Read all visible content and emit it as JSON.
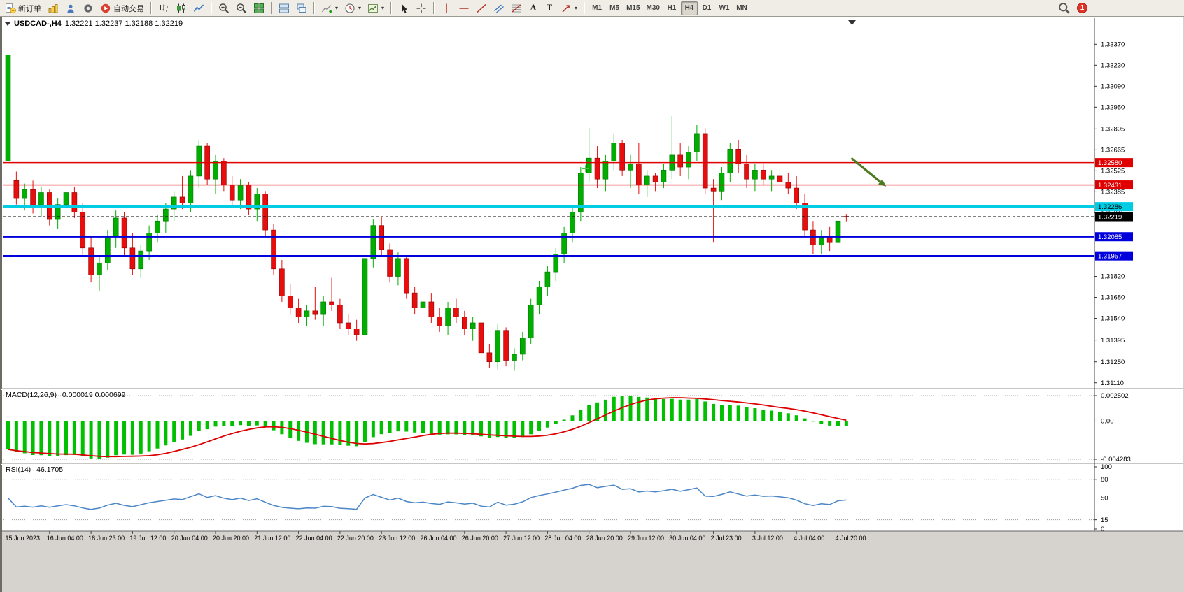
{
  "toolbar": {
    "new_order_label": "新订单",
    "autotrade_label": "自动交易",
    "timeframes": [
      "M1",
      "M5",
      "M15",
      "M30",
      "H1",
      "H4",
      "D1",
      "W1",
      "MN"
    ],
    "active_timeframe": "H4",
    "notification_count": "1",
    "text_tool_glyph": "A",
    "label_tool_glyph": "T",
    "items": [
      {
        "icon": "new-order",
        "label_key": "new_order_label"
      },
      {
        "icon": "charts"
      },
      {
        "icon": "market-watch"
      },
      {
        "icon": "data-window"
      },
      {
        "icon": "autotrade",
        "label_key": "autotrade_label"
      },
      {
        "sep": true
      },
      {
        "icon": "bar-chart"
      },
      {
        "icon": "candle-chart"
      },
      {
        "icon": "line-chart"
      },
      {
        "sep": true
      },
      {
        "icon": "zoom-in"
      },
      {
        "icon": "zoom-out"
      },
      {
        "icon": "tile-windows"
      },
      {
        "sep": true
      },
      {
        "icon": "auto-arrange"
      },
      {
        "icon": "cascade"
      },
      {
        "sep": true
      },
      {
        "icon": "indicators",
        "dropdown": true
      },
      {
        "icon": "periods",
        "dropdown": true
      },
      {
        "icon": "templates",
        "dropdown": true
      },
      {
        "sep": true
      },
      {
        "icon": "cursor"
      },
      {
        "icon": "crosshair"
      },
      {
        "sep": true
      },
      {
        "icon": "vline"
      },
      {
        "icon": "hline"
      },
      {
        "icon": "trendline"
      },
      {
        "icon": "channel"
      },
      {
        "icon": "fibonacci"
      },
      {
        "icon": "text-tool",
        "glyph": "A"
      },
      {
        "icon": "label-tool",
        "glyph": "T"
      },
      {
        "icon": "arrows",
        "dropdown": true
      },
      {
        "sep": true
      },
      {
        "tf": "M1"
      },
      {
        "tf": "M5"
      },
      {
        "tf": "M15"
      },
      {
        "tf": "M30"
      },
      {
        "tf": "H1"
      },
      {
        "tf": "H4"
      },
      {
        "tf": "D1"
      },
      {
        "tf": "W1"
      },
      {
        "tf": "MN"
      }
    ]
  },
  "chart": {
    "symbol_label": "USDCAD-,H4",
    "ohlc": "1.32221 1.32237 1.32188 1.32219",
    "current_price": "1.32219",
    "price_axis_ticks": [
      "1.33370",
      "1.33230",
      "1.33090",
      "1.32950",
      "1.32805",
      "1.32665",
      "1.32525",
      "1.32385",
      "1.32245",
      "1.31820",
      "1.31680",
      "1.31540",
      "1.31395",
      "1.31250",
      "1.31110"
    ],
    "price_lines": [
      {
        "label": "1.32580",
        "price": 1.3258,
        "color": "#E00000",
        "text_color": "#FFFFFF",
        "width": 1.4,
        "dashed": false
      },
      {
        "label": "1.32431",
        "price": 1.32431,
        "color": "#E00000",
        "text_color": "#FFFFFF",
        "width": 1.4,
        "dashed": false
      },
      {
        "label": "1.32286",
        "price": 1.32286,
        "color": "#00CCE4",
        "text_color": "#000000",
        "width": 3.2,
        "dashed": false
      },
      {
        "label": "1.32219",
        "price": 1.32219,
        "color": "#000000",
        "text_color": "#FFFFFF",
        "width": 1,
        "dashed": true
      },
      {
        "label": "1.32085",
        "price": 1.32085,
        "color": "#0000DC",
        "text_color": "#FFFFFF",
        "width": 2.4,
        "dashed": false
      },
      {
        "label": "1.31957",
        "price": 1.31957,
        "color": "#0000DC",
        "text_color": "#FFFFFF",
        "width": 2.4,
        "dashed": false
      }
    ],
    "time_axis": [
      "15 Jun 2023",
      "16 Jun 04:00",
      "18 Jun 23:00",
      "19 Jun 12:00",
      "20 Jun 04:00",
      "20 Jun 20:00",
      "21 Jun 12:00",
      "22 Jun 04:00",
      "22 Jun 20:00",
      "23 Jun 12:00",
      "26 Jun 04:00",
      "26 Jun 20:00",
      "27 Jun 12:00",
      "28 Jun 04:00",
      "28 Jun 20:00",
      "29 Jun 12:00",
      "30 Jun 04:00",
      "2 Jul 23:00",
      "3 Jul 12:00",
      "4 Jul 04:00",
      "4 Jul 20:00"
    ]
  },
  "macd": {
    "label": "MACD(12,26,9)",
    "values": "0.000019 0.000699",
    "axis": [
      "0.002502",
      "0.00",
      "-0.004283"
    ]
  },
  "rsi": {
    "label": "RSI(14)",
    "value": "46.1705",
    "axis": [
      "100",
      "80",
      "50",
      "15",
      "0"
    ],
    "axis_values": [
      100,
      80,
      50,
      15,
      0
    ],
    "levels": [
      80,
      50,
      15
    ]
  },
  "colors": {
    "candle_up": "#00AE00",
    "candle_up_border": "#007400",
    "candle_down": "#E80E0E",
    "candle_down_border": "#8E0000",
    "macd_histogram": "#00C000",
    "macd_signal": "#DC0000",
    "rsi_line": "#4A86C8",
    "arrow_annotation": "#4C7A1E",
    "plus_marker": "#46C846",
    "axis_text": "#000000"
  },
  "chart_data": {
    "type": "candlestick",
    "symbol": "USDCAD",
    "timeframe": "H4",
    "bars_per_time_label": 5,
    "candles_ohlc": [
      [
        1.3259,
        1.3334,
        1.3256,
        1.333
      ],
      [
        1.3246,
        1.3252,
        1.323,
        1.3234
      ],
      [
        1.3234,
        1.3244,
        1.3226,
        1.324
      ],
      [
        1.324,
        1.3246,
        1.3224,
        1.3228
      ],
      [
        1.3228,
        1.3242,
        1.3222,
        1.3238
      ],
      [
        1.3238,
        1.324,
        1.3216,
        1.322
      ],
      [
        1.322,
        1.3234,
        1.3214,
        1.323
      ],
      [
        1.323,
        1.3241,
        1.3222,
        1.3238
      ],
      [
        1.3238,
        1.3242,
        1.3221,
        1.3225
      ],
      [
        1.3225,
        1.3231,
        1.3196,
        1.3201
      ],
      [
        1.3201,
        1.3209,
        1.3178,
        1.3183
      ],
      [
        1.3183,
        1.3196,
        1.3172,
        1.3191
      ],
      [
        1.3191,
        1.3213,
        1.3186,
        1.3209
      ],
      [
        1.3209,
        1.3226,
        1.3201,
        1.3221
      ],
      [
        1.3221,
        1.3225,
        1.3196,
        1.3201
      ],
      [
        1.3201,
        1.3211,
        1.3183,
        1.3187
      ],
      [
        1.3187,
        1.3203,
        1.3181,
        1.3199
      ],
      [
        1.3199,
        1.3216,
        1.3193,
        1.3211
      ],
      [
        1.3211,
        1.3223,
        1.3205,
        1.3219
      ],
      [
        1.3219,
        1.3231,
        1.3211,
        1.3227
      ],
      [
        1.3227,
        1.3239,
        1.3219,
        1.3235
      ],
      [
        1.3235,
        1.3249,
        1.3227,
        1.3231
      ],
      [
        1.3231,
        1.3253,
        1.3225,
        1.3249
      ],
      [
        1.3249,
        1.3273,
        1.3241,
        1.3269
      ],
      [
        1.3269,
        1.3271,
        1.3243,
        1.3247
      ],
      [
        1.3247,
        1.3263,
        1.3237,
        1.3259
      ],
      [
        1.3259,
        1.3261,
        1.3239,
        1.3243
      ],
      [
        1.3243,
        1.3249,
        1.3229,
        1.3233
      ],
      [
        1.3233,
        1.3247,
        1.3227,
        1.3243
      ],
      [
        1.3243,
        1.3245,
        1.3223,
        1.3227
      ],
      [
        1.3227,
        1.3241,
        1.3219,
        1.3237
      ],
      [
        1.3237,
        1.3239,
        1.3209,
        1.3213
      ],
      [
        1.3213,
        1.3217,
        1.3183,
        1.3187
      ],
      [
        1.3187,
        1.3193,
        1.3165,
        1.3169
      ],
      [
        1.3169,
        1.3177,
        1.3157,
        1.3161
      ],
      [
        1.3161,
        1.3167,
        1.3151,
        1.3155
      ],
      [
        1.3155,
        1.3163,
        1.3149,
        1.3159
      ],
      [
        1.3159,
        1.3175,
        1.3153,
        1.3157
      ],
      [
        1.3157,
        1.3169,
        1.3149,
        1.3165
      ],
      [
        1.3165,
        1.3181,
        1.3159,
        1.3163
      ],
      [
        1.3163,
        1.3167,
        1.3147,
        1.3151
      ],
      [
        1.3151,
        1.3157,
        1.3143,
        1.3147
      ],
      [
        1.3147,
        1.3153,
        1.3139,
        1.3143
      ],
      [
        1.3143,
        1.3198,
        1.3141,
        1.3194
      ],
      [
        1.3194,
        1.322,
        1.3188,
        1.3216
      ],
      [
        1.3216,
        1.3222,
        1.3196,
        1.32
      ],
      [
        1.32,
        1.3204,
        1.3178,
        1.3182
      ],
      [
        1.3182,
        1.3198,
        1.3176,
        1.3194
      ],
      [
        1.3194,
        1.3196,
        1.3167,
        1.3171
      ],
      [
        1.3171,
        1.3175,
        1.3157,
        1.3161
      ],
      [
        1.3161,
        1.3169,
        1.3153,
        1.3165
      ],
      [
        1.3165,
        1.3171,
        1.3151,
        1.3155
      ],
      [
        1.3155,
        1.3161,
        1.3145,
        1.3149
      ],
      [
        1.3149,
        1.3165,
        1.3143,
        1.3161
      ],
      [
        1.3161,
        1.3167,
        1.3151,
        1.3155
      ],
      [
        1.3155,
        1.3159,
        1.3143,
        1.3147
      ],
      [
        1.3147,
        1.3155,
        1.3139,
        1.3151
      ],
      [
        1.3151,
        1.3153,
        1.3127,
        1.3131
      ],
      [
        1.3131,
        1.3137,
        1.3121,
        1.3125
      ],
      [
        1.3125,
        1.315,
        1.312,
        1.3146
      ],
      [
        1.3146,
        1.3148,
        1.3122,
        1.3126
      ],
      [
        1.3126,
        1.3134,
        1.3119,
        1.313
      ],
      [
        1.313,
        1.3145,
        1.3126,
        1.3141
      ],
      [
        1.3141,
        1.3167,
        1.3137,
        1.3163
      ],
      [
        1.3163,
        1.3179,
        1.3157,
        1.3175
      ],
      [
        1.3175,
        1.3189,
        1.3169,
        1.3185
      ],
      [
        1.3185,
        1.3201,
        1.3179,
        1.3197
      ],
      [
        1.3197,
        1.3215,
        1.3191,
        1.3211
      ],
      [
        1.3211,
        1.3229,
        1.3205,
        1.3225
      ],
      [
        1.3225,
        1.3255,
        1.3219,
        1.3251
      ],
      [
        1.3251,
        1.3281,
        1.3245,
        1.3261
      ],
      [
        1.3261,
        1.3269,
        1.3241,
        1.3247
      ],
      [
        1.3247,
        1.3263,
        1.3239,
        1.3259
      ],
      [
        1.3259,
        1.3277,
        1.3253,
        1.3271
      ],
      [
        1.3271,
        1.3273,
        1.3249,
        1.3253
      ],
      [
        1.3253,
        1.3263,
        1.3241,
        1.3257
      ],
      [
        1.3257,
        1.3271,
        1.3237,
        1.3243
      ],
      [
        1.3243,
        1.3253,
        1.3235,
        1.3249
      ],
      [
        1.3249,
        1.3251,
        1.3239,
        1.3245
      ],
      [
        1.3245,
        1.3257,
        1.3241,
        1.3253
      ],
      [
        1.3253,
        1.3289,
        1.3247,
        1.3263
      ],
      [
        1.3263,
        1.3271,
        1.3249,
        1.3255
      ],
      [
        1.3255,
        1.3269,
        1.3247,
        1.3265
      ],
      [
        1.3265,
        1.3283,
        1.3259,
        1.3277
      ],
      [
        1.3277,
        1.3281,
        1.3237,
        1.3241
      ],
      [
        1.3241,
        1.3247,
        1.3205,
        1.3239
      ],
      [
        1.3239,
        1.3255,
        1.3233,
        1.3251
      ],
      [
        1.3251,
        1.3271,
        1.3245,
        1.3267
      ],
      [
        1.3267,
        1.3273,
        1.3251,
        1.3257
      ],
      [
        1.3257,
        1.3263,
        1.3241,
        1.3247
      ],
      [
        1.3247,
        1.3257,
        1.3239,
        1.3253
      ],
      [
        1.3253,
        1.3257,
        1.3243,
        1.3247
      ],
      [
        1.3247,
        1.3253,
        1.3239,
        1.3249
      ],
      [
        1.3249,
        1.3255,
        1.3243,
        1.3245
      ],
      [
        1.3245,
        1.3251,
        1.3237,
        1.3241
      ],
      [
        1.3241,
        1.3249,
        1.3227,
        1.3231
      ],
      [
        1.3231,
        1.3237,
        1.3209,
        1.3213
      ],
      [
        1.3213,
        1.3219,
        1.3197,
        1.3203
      ],
      [
        1.3203,
        1.3213,
        1.3197,
        1.3209
      ],
      [
        1.3209,
        1.3215,
        1.3199,
        1.3205
      ],
      [
        1.3205,
        1.3223,
        1.3201,
        1.3219
      ],
      [
        1.32221,
        1.32237,
        1.32188,
        1.32219
      ]
    ],
    "indicators": {
      "macd": {
        "fast": 12,
        "slow": 26,
        "signal": 9
      },
      "rsi": {
        "period": 14
      }
    },
    "annotations": [
      {
        "type": "arrow",
        "from_bar": 101.6,
        "from_price": 1.3261,
        "to_bar": 105.8,
        "to_price": 1.3242
      },
      {
        "type": "plus",
        "bar": 69.6,
        "price": 1.3254
      }
    ]
  }
}
